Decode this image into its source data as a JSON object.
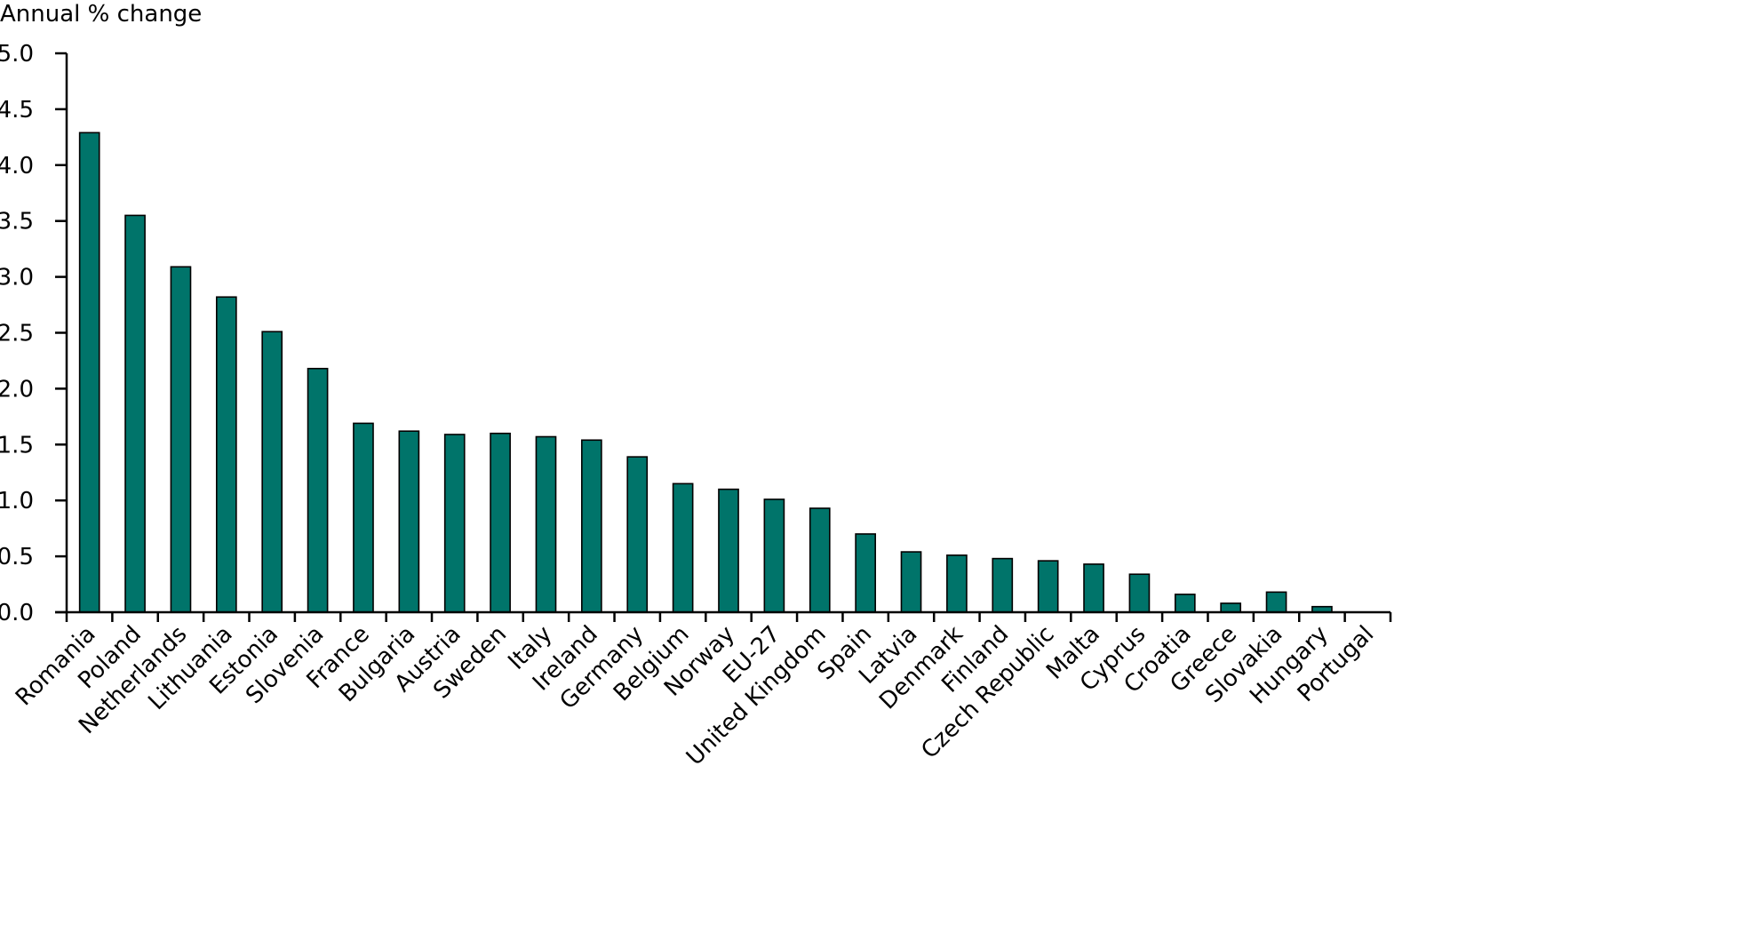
{
  "chart_data": {
    "type": "bar",
    "ylabel": "Annual % change",
    "ylim": [
      0,
      5
    ],
    "ytick_step": 0.5,
    "yticks": [
      "0.0",
      "0.5",
      "1.0",
      "1.5",
      "2.0",
      "2.5",
      "3.0",
      "3.5",
      "4.0",
      "4.5",
      "5.0"
    ],
    "grid": false,
    "bar_color": "#00746A",
    "categories": [
      "Romania",
      "Poland",
      "Netherlands",
      "Lithuania",
      "Estonia",
      "Slovenia",
      "France",
      "Bulgaria",
      "Austria",
      "Sweden",
      "Italy",
      "Ireland",
      "Germany",
      "Belgium",
      "Norway",
      "EU-27",
      "United Kingdom",
      "Spain",
      "Latvia",
      "Denmark",
      "Finland",
      "Czech Republic",
      "Malta",
      "Cyprus",
      "Croatia",
      "Greece",
      "Slovakia",
      "Hungary",
      "Portugal"
    ],
    "values": [
      4.29,
      3.55,
      3.09,
      2.82,
      2.51,
      2.18,
      1.69,
      1.62,
      1.59,
      1.6,
      1.57,
      1.54,
      1.39,
      1.15,
      1.1,
      1.01,
      0.93,
      0.7,
      0.54,
      0.51,
      0.48,
      0.46,
      0.43,
      0.34,
      0.16,
      0.08,
      0.18,
      0.05,
      0.0
    ]
  }
}
